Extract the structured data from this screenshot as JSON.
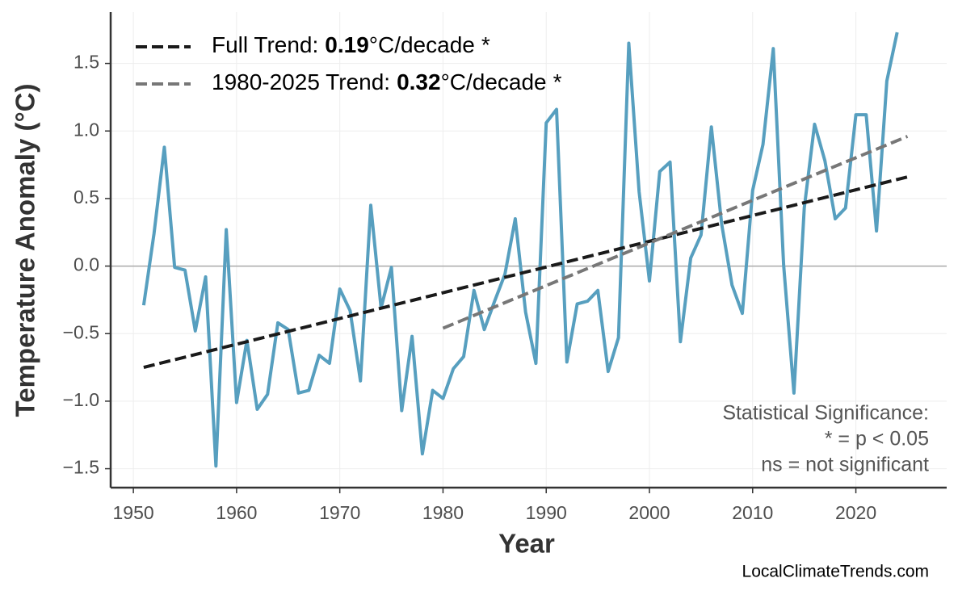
{
  "chart_data": {
    "type": "line",
    "xlabel": "Year",
    "ylabel": "Temperature Anomaly (°C)",
    "xlim": [
      1947.8,
      2028.8
    ],
    "ylim": [
      -1.64,
      1.88
    ],
    "xticks": [
      1950,
      1960,
      1970,
      1980,
      1990,
      2000,
      2010,
      2020
    ],
    "yticks": [
      {
        "value": -1.5,
        "label": "−1.5"
      },
      {
        "value": -1,
        "label": "−1.0"
      },
      {
        "value": -0.5,
        "label": "−0.5"
      },
      {
        "value": 0,
        "label": "0.0"
      },
      {
        "value": 0.5,
        "label": "0.5"
      },
      {
        "value": 1,
        "label": "1.0"
      },
      {
        "value": 1.5,
        "label": "1.5"
      }
    ],
    "grid": true,
    "zero_line": true,
    "legend": "upper-left",
    "series": [
      {
        "color": "#579fbf",
        "x": [
          1951,
          1952,
          1953,
          1954,
          1955,
          1956,
          1957,
          1958,
          1959,
          1960,
          1961,
          1962,
          1963,
          1964,
          1965,
          1966,
          1967,
          1968,
          1969,
          1970,
          1971,
          1972,
          1973,
          1974,
          1975,
          1976,
          1977,
          1978,
          1979,
          1980,
          1981,
          1982,
          1983,
          1984,
          1985,
          1986,
          1987,
          1988,
          1989,
          1990,
          1991,
          1992,
          1993,
          1994,
          1995,
          1996,
          1997,
          1998,
          1999,
          2000,
          2001,
          2002,
          2003,
          2004,
          2005,
          2006,
          2007,
          2008,
          2009,
          2010,
          2011,
          2012,
          2013,
          2014,
          2015,
          2016,
          2017,
          2018,
          2019,
          2020,
          2021,
          2022,
          2023,
          2024
        ],
        "values": [
          -0.29,
          0.24,
          0.88,
          -0.01,
          -0.03,
          -0.48,
          -0.08,
          -1.48,
          0.27,
          -1.01,
          -0.55,
          -1.06,
          -0.95,
          -0.42,
          -0.47,
          -0.94,
          -0.92,
          -0.66,
          -0.72,
          -0.17,
          -0.33,
          -0.85,
          0.45,
          -0.31,
          -0.01,
          -1.07,
          -0.52,
          -1.39,
          -0.92,
          -0.98,
          -0.76,
          -0.67,
          -0.18,
          -0.47,
          -0.26,
          -0.06,
          0.35,
          -0.34,
          -0.72,
          1.06,
          1.16,
          -0.71,
          -0.28,
          -0.26,
          -0.18,
          -0.78,
          -0.53,
          1.65,
          0.55,
          -0.11,
          0.7,
          0.77,
          -0.56,
          0.06,
          0.23,
          1.03,
          0.31,
          -0.14,
          -0.35,
          0.56,
          0.9,
          1.61,
          0.01,
          -0.94,
          0.43,
          1.05,
          0.78,
          0.35,
          0.43,
          1.12,
          1.12,
          0.26,
          1.37,
          1.73
        ]
      },
      {
        "name": "Full Trend:",
        "rate": "0.19",
        "rate_unit": "°C/decade",
        "significance": "*",
        "color": "#1a1a1a",
        "dashed": true,
        "x": [
          1951,
          2025
        ],
        "values": [
          -0.75,
          0.66
        ]
      },
      {
        "name": "1980-2025 Trend:",
        "rate": "0.32",
        "rate_unit": "°C/decade",
        "significance": "*",
        "color": "#777777",
        "dashed": true,
        "x": [
          1980,
          2025
        ],
        "values": [
          -0.46,
          0.96
        ]
      }
    ],
    "annotation": [
      "Statistical Significance:",
      "* = p < 0.05",
      "ns = not significant"
    ],
    "source": "LocalClimateTrends.com"
  }
}
